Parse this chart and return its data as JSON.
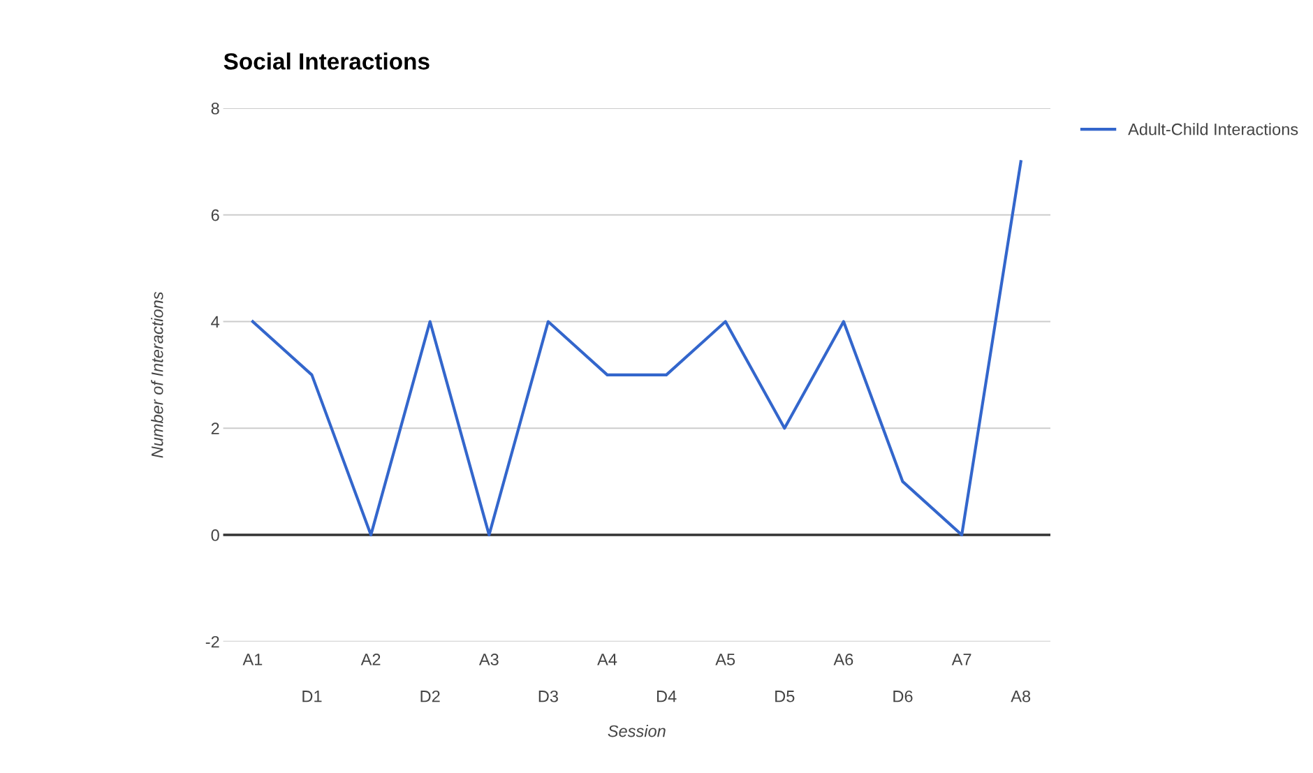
{
  "chart_data": {
    "type": "line",
    "title": "Social Interactions",
    "xlabel": "Session",
    "ylabel": "Number of Interactions",
    "categories": [
      "A1",
      "D1",
      "A2",
      "D2",
      "A3",
      "D3",
      "A4",
      "D4",
      "A5",
      "D5",
      "A6",
      "D6",
      "A7",
      "A8"
    ],
    "series": [
      {
        "name": "Adult-Child Interactions",
        "color": "#3366cc",
        "values": [
          4,
          3,
          0,
          4,
          0,
          4,
          3,
          3,
          4,
          2,
          4,
          1,
          0,
          7
        ]
      }
    ],
    "ylim": [
      -2,
      8
    ],
    "yticks": [
      -2,
      0,
      2,
      4,
      6,
      8
    ],
    "grid": "y",
    "legend": "right",
    "marker": "none",
    "line_style": "solid",
    "ref_lines": [
      {
        "axis": "y",
        "value": 0,
        "color": "#333333"
      }
    ]
  }
}
